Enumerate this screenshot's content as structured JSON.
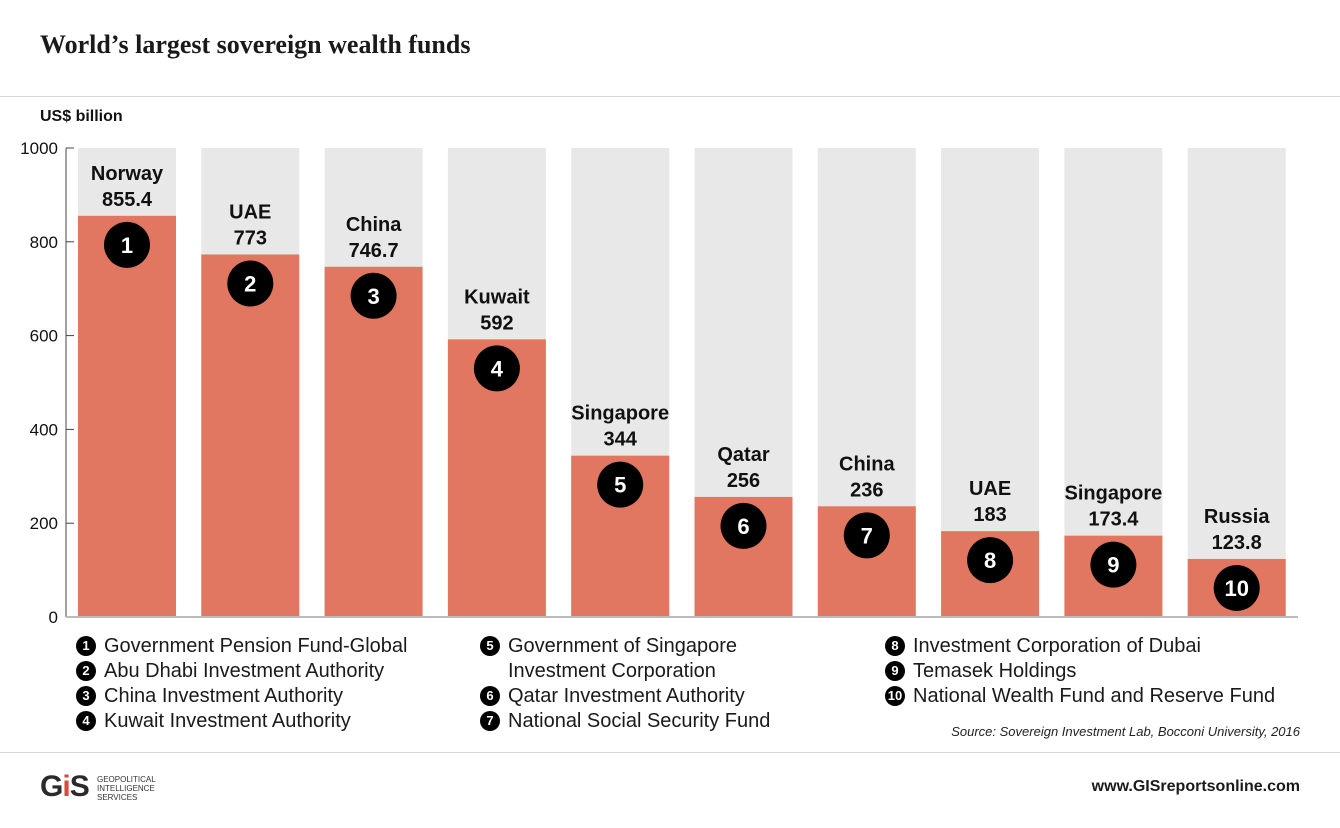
{
  "title": "World’s largest sovereign wealth funds",
  "unit_label": "US$ billion",
  "colors": {
    "bar": "#e27761",
    "background_bar": "#e8e8e8",
    "badge": "#000000",
    "accent": "#d9483b"
  },
  "chart_data": {
    "type": "bar",
    "title": "World’s largest sovereign wealth funds",
    "ylabel": "US$ billion",
    "xlabel": "",
    "ylim": [
      0,
      1000
    ],
    "yticks": [
      "0",
      "200",
      "400",
      "600",
      "800",
      "1000"
    ],
    "grid": false,
    "categories": [
      "Norway",
      "UAE",
      "China",
      "Kuwait",
      "Singapore",
      "Qatar",
      "China",
      "UAE",
      "Singapore",
      "Russia"
    ],
    "values": [
      855.4,
      773,
      746.7,
      592,
      344,
      256,
      236,
      183,
      173.4,
      123.8
    ],
    "value_labels": [
      "855.4",
      "773",
      "746.7",
      "592",
      "344",
      "256",
      "236",
      "183",
      "173.4",
      "123.8"
    ],
    "ranks": [
      "1",
      "2",
      "3",
      "4",
      "5",
      "6",
      "7",
      "8",
      "9",
      "10"
    ]
  },
  "legend": {
    "col1": [
      {
        "num": "1",
        "text": "Government Pension Fund-Global"
      },
      {
        "num": "2",
        "text": "Abu Dhabi Investment Authority"
      },
      {
        "num": "3",
        "text": "China Investment Authority"
      },
      {
        "num": "4",
        "text": "Kuwait Investment Authority"
      }
    ],
    "col2": [
      {
        "num": "5",
        "text": "Government of Singapore",
        "cont": "Investment Corporation"
      },
      {
        "num": "6",
        "text": "Qatar Investment Authority"
      },
      {
        "num": "7",
        "text": "National Social Security Fund"
      }
    ],
    "col3": [
      {
        "num": "8",
        "text": "Investment Corporation of Dubai"
      },
      {
        "num": "9",
        "text": "Temasek Holdings"
      },
      {
        "num": "10",
        "text": "National Wealth Fund and Reserve Fund"
      }
    ]
  },
  "source": "Source: Sovereign Investment Lab, Bocconi University, 2016",
  "footer": {
    "logo_letters": [
      "G",
      "i",
      "S"
    ],
    "logo_subtitle": [
      "GEOPOLITICAL",
      "INTELLIGENCE",
      "SERVICES"
    ],
    "website": "www.GISreportsonline.com"
  }
}
